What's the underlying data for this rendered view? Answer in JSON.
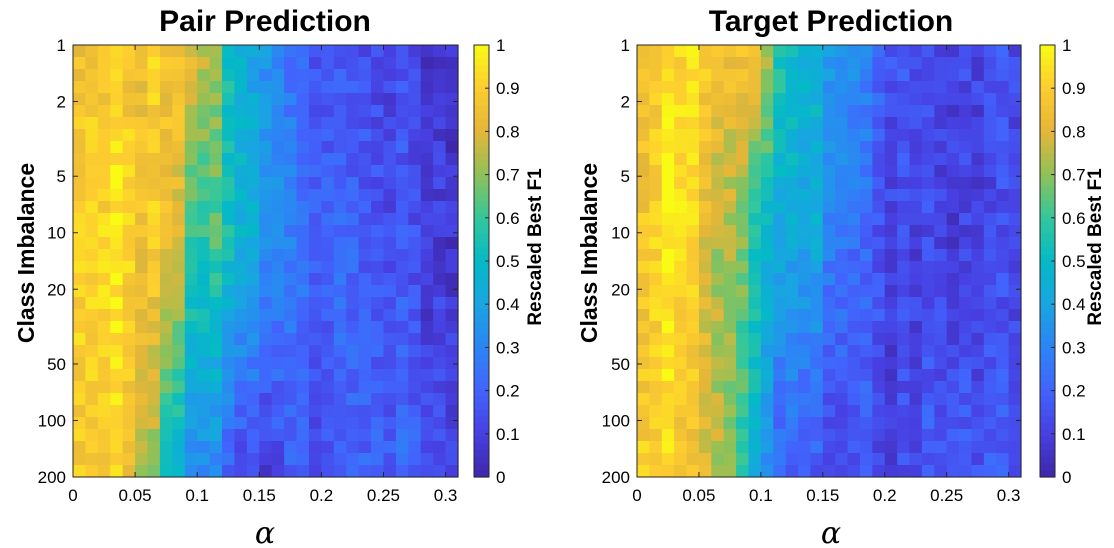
{
  "chart_data": [
    {
      "type": "heatmap",
      "title": "Pair Prediction",
      "xlabel": "α",
      "ylabel": "Class Imbalance",
      "colorbar_label": "Rescaled  Best F1",
      "colormap": "parula",
      "y_scale": "log",
      "xlim": [
        0,
        0.31
      ],
      "ylim": [
        1,
        200
      ],
      "clim": [
        0,
        1
      ],
      "x_ticks": [
        0,
        0.05,
        0.1,
        0.15,
        0.2,
        0.25,
        0.3
      ],
      "x_tick_labels": [
        "0",
        "0.05",
        "0.1",
        "0.15",
        "0.2",
        "0.25",
        "0.3"
      ],
      "y_ticks": [
        1,
        2,
        5,
        10,
        20,
        50,
        100,
        200
      ],
      "y_tick_labels": [
        "1",
        "2",
        "5",
        "10",
        "20",
        "50",
        "100",
        "200"
      ],
      "colorbar_ticks": [
        0,
        0.1,
        0.2,
        0.3,
        0.4,
        0.5,
        0.6,
        0.7,
        0.8,
        0.9,
        1
      ],
      "colorbar_tick_labels": [
        "0",
        "0.1",
        "0.2",
        "0.3",
        "0.4",
        "0.5",
        "0.6",
        "0.7",
        "0.8",
        "0.9",
        "1"
      ],
      "alpha_profile": {
        "x": [
          0,
          0.02,
          0.04,
          0.06,
          0.08,
          0.1,
          0.12,
          0.14,
          0.16,
          0.18,
          0.2,
          0.25,
          0.3
        ],
        "value_at_imbalance_1": [
          0.82,
          0.86,
          0.9,
          0.86,
          0.82,
          0.8,
          0.6,
          0.45,
          0.35,
          0.2,
          0.15,
          0.12,
          0.1
        ],
        "value_at_imbalance_10": [
          0.88,
          0.92,
          0.98,
          0.85,
          0.83,
          0.55,
          0.6,
          0.5,
          0.35,
          0.25,
          0.2,
          0.15,
          0.1
        ],
        "value_at_imbalance_200": [
          0.85,
          0.9,
          0.92,
          0.75,
          0.45,
          0.3,
          0.25,
          0.15,
          0.1,
          0.2,
          0.15,
          0.2,
          0.15
        ]
      }
    },
    {
      "type": "heatmap",
      "title": "Target Prediction",
      "xlabel": "α",
      "ylabel": "Class Imbalance",
      "colorbar_label": "Rescaled  Best F1",
      "colormap": "parula",
      "y_scale": "log",
      "xlim": [
        0,
        0.31
      ],
      "ylim": [
        1,
        200
      ],
      "clim": [
        0,
        1
      ],
      "x_ticks": [
        0,
        0.05,
        0.1,
        0.15,
        0.2,
        0.25,
        0.3
      ],
      "x_tick_labels": [
        "0",
        "0.05",
        "0.1",
        "0.15",
        "0.2",
        "0.25",
        "0.3"
      ],
      "y_ticks": [
        1,
        2,
        5,
        10,
        20,
        50,
        100,
        200
      ],
      "y_tick_labels": [
        "1",
        "2",
        "5",
        "10",
        "20",
        "50",
        "100",
        "200"
      ],
      "colorbar_ticks": [
        0,
        0.1,
        0.2,
        0.3,
        0.4,
        0.5,
        0.6,
        0.7,
        0.8,
        0.9,
        1
      ],
      "colorbar_tick_labels": [
        "0",
        "0.1",
        "0.2",
        "0.3",
        "0.4",
        "0.5",
        "0.6",
        "0.7",
        "0.8",
        "0.9",
        "1"
      ],
      "alpha_profile": {
        "x": [
          0,
          0.02,
          0.04,
          0.06,
          0.08,
          0.1,
          0.12,
          0.14,
          0.16,
          0.18,
          0.2,
          0.25,
          0.3
        ],
        "value_at_imbalance_1": [
          0.88,
          0.9,
          0.95,
          0.92,
          0.82,
          0.78,
          0.55,
          0.45,
          0.4,
          0.3,
          0.2,
          0.15,
          0.12
        ],
        "value_at_imbalance_10": [
          0.9,
          0.95,
          0.95,
          0.75,
          0.7,
          0.45,
          0.45,
          0.42,
          0.3,
          0.2,
          0.15,
          0.12,
          0.1
        ],
        "value_at_imbalance_200": [
          0.95,
          0.9,
          0.85,
          0.8,
          0.6,
          0.35,
          0.2,
          0.15,
          0.1,
          0.15,
          0.12,
          0.2,
          0.15
        ]
      }
    }
  ]
}
